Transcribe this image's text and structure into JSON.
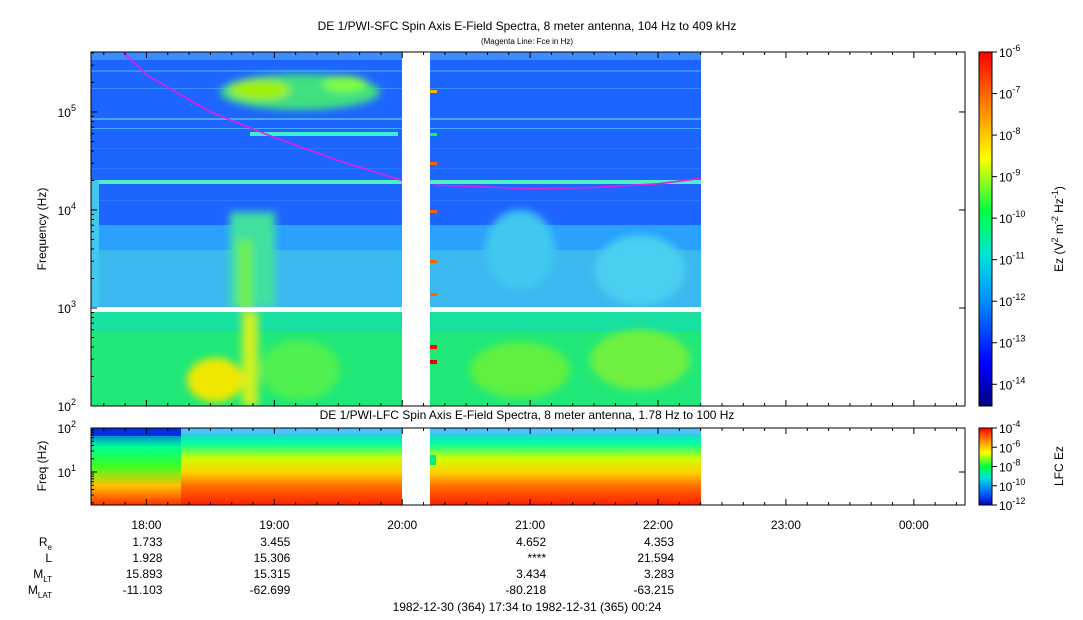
{
  "chart_data": [
    {
      "type": "heatmap",
      "title": "DE 1/PWI-SFC  Spin Axis E-Field Spectra, 8 meter antenna, 104 Hz to 409 kHz",
      "subtitle": "(Magenta Line: Fce in Hz)",
      "ylabel": "Frequency (Hz)",
      "y_scale": "log",
      "ylim": [
        100,
        409000
      ],
      "y_ticks": [
        {
          "value": 100,
          "label": "10",
          "exp": "2"
        },
        {
          "value": 1000,
          "label": "10",
          "exp": "3"
        },
        {
          "value": 10000,
          "label": "10",
          "exp": "4"
        },
        {
          "value": 100000,
          "label": "10",
          "exp": "5"
        }
      ],
      "x_time_range": [
        "17:34",
        "00:24"
      ],
      "data_gaps": [
        [
          "20:01",
          "20:13"
        ]
      ],
      "data_end": "22:20",
      "colorbar": {
        "label": "Ez (V² m⁻² Hz⁻¹)",
        "scale": "log",
        "range": [
          3e-15,
          1e-06
        ],
        "ticks": [
          {
            "value": 1e-06,
            "label": "10",
            "exp": "-6"
          },
          {
            "value": 1e-07,
            "label": "10",
            "exp": "-7"
          },
          {
            "value": 1e-08,
            "label": "10",
            "exp": "-8"
          },
          {
            "value": 1e-09,
            "label": "10",
            "exp": "-9"
          },
          {
            "value": 1e-10,
            "label": "10",
            "exp": "-10"
          },
          {
            "value": 1e-11,
            "label": "10",
            "exp": "-11"
          },
          {
            "value": 1e-12,
            "label": "10",
            "exp": "-12"
          },
          {
            "value": 1e-13,
            "label": "10",
            "exp": "-13"
          },
          {
            "value": 1e-14,
            "label": "10",
            "exp": "-14"
          }
        ]
      },
      "fce_line": {
        "color": "#e020e0",
        "points": [
          [
            "17:49",
            409000
          ],
          [
            "18:00",
            240000
          ],
          [
            "18:30",
            100000
          ],
          [
            "19:00",
            55000
          ],
          [
            "19:30",
            32000
          ],
          [
            "20:00",
            20000
          ],
          [
            "20:15",
            18000
          ],
          [
            "21:00",
            16500
          ],
          [
            "21:30",
            17000
          ],
          [
            "22:00",
            18500
          ],
          [
            "22:20",
            21000
          ]
        ]
      }
    },
    {
      "type": "heatmap",
      "title": "DE 1/PWI-LFC  Spin Axis E-Field Spectra, 8 meter antenna, 1.78 Hz to 100 Hz",
      "ylabel": "Freq (Hz)",
      "y_scale": "log",
      "ylim": [
        1.78,
        100
      ],
      "y_ticks": [
        {
          "value": 100,
          "label": "10",
          "exp": "2"
        },
        {
          "value": 10,
          "label": "10",
          "exp": "1"
        }
      ],
      "colorbar": {
        "label": "LFC Ez",
        "scale": "log",
        "range": [
          1e-12,
          0.0001
        ],
        "ticks": [
          {
            "value": 0.0001,
            "label": "10",
            "exp": "-4"
          },
          {
            "value": 1e-06,
            "label": "10",
            "exp": "-6"
          },
          {
            "value": 1e-08,
            "label": "10",
            "exp": "-8"
          },
          {
            "value": 1e-10,
            "label": "10",
            "exp": "-10"
          },
          {
            "value": 1e-12,
            "label": "10",
            "exp": "-12"
          }
        ]
      }
    }
  ],
  "x_axis": {
    "ticks": [
      {
        "time": "18:00",
        "label": "18:00"
      },
      {
        "time": "19:00",
        "label": "19:00"
      },
      {
        "time": "20:00",
        "label": "20:00"
      },
      {
        "time": "21:00",
        "label": "21:00"
      },
      {
        "time": "22:00",
        "label": "22:00"
      },
      {
        "time": "23:00",
        "label": "23:00"
      },
      {
        "time": "00:00",
        "label": "00:00"
      }
    ]
  },
  "ephemeris": {
    "rows": [
      {
        "label": "R",
        "sub": "e",
        "values": [
          "1.733",
          "3.455",
          "",
          "4.652",
          "4.353",
          "",
          ""
        ]
      },
      {
        "label": "L",
        "sub": "",
        "values": [
          "1.928",
          "15.306",
          "",
          "****",
          "21.594",
          "",
          ""
        ]
      },
      {
        "label": "M",
        "sub": "LT",
        "values": [
          "15.893",
          "15.315",
          "",
          "3.434",
          "3.283",
          "",
          ""
        ]
      },
      {
        "label": "M",
        "sub": "LAT",
        "values": [
          "-11.103",
          "-62.699",
          "",
          "-80.218",
          "-63.215",
          "",
          ""
        ]
      }
    ]
  },
  "time_span": "1982-12-30 (364) 17:34 to 1982-12-31 (365) 00:24"
}
